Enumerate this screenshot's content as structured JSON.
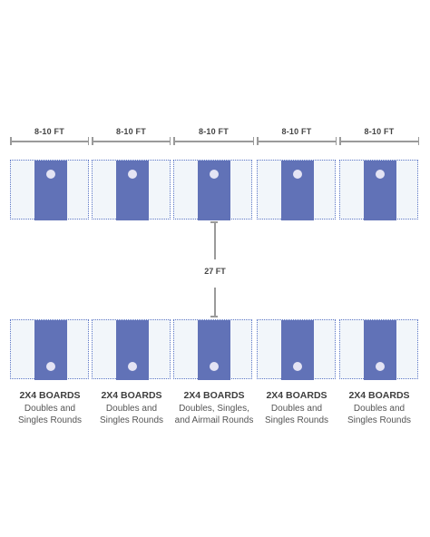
{
  "spacing": [
    {
      "label": "8-10 FT"
    },
    {
      "label": "8-10 FT"
    },
    {
      "label": "8-10 FT"
    },
    {
      "label": "8-10 FT"
    },
    {
      "label": "8-10 FT"
    }
  ],
  "distance": {
    "label": "27 FT"
  },
  "colors": {
    "board": "#6172b7",
    "lane": "#f2f6fa",
    "lane_border": "#5d77c6",
    "hole": "#e4e4f4",
    "dimension": "#9a9a9a"
  },
  "courts": [
    {
      "title": "2X4 BOARDS",
      "line1": "Doubles and",
      "line2": "Singles Rounds"
    },
    {
      "title": "2X4 BOARDS",
      "line1": "Doubles and",
      "line2": "Singles Rounds"
    },
    {
      "title": "2X4 BOARDS",
      "line1": "Doubles, Singles,",
      "line2": "and Airmail Rounds"
    },
    {
      "title": "2X4 BOARDS",
      "line1": "Doubles and",
      "line2": "Singles Rounds"
    },
    {
      "title": "2X4 BOARDS",
      "line1": "Doubles and",
      "line2": "Singles Rounds"
    }
  ]
}
